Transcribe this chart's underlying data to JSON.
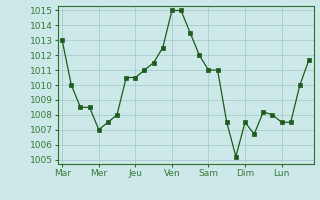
{
  "x_values": [
    0,
    1,
    2,
    3,
    4,
    5,
    6,
    7,
    8,
    9,
    10,
    11,
    12,
    13,
    14,
    15,
    16,
    17,
    18,
    19,
    20,
    21,
    22,
    23,
    24,
    25,
    26,
    27
  ],
  "y_values": [
    1013,
    1010,
    1008.5,
    1008.5,
    1007,
    1007.5,
    1008,
    1010.5,
    1010.5,
    1011,
    1011.5,
    1012.5,
    1015,
    1015,
    1013.5,
    1012,
    1011,
    1011,
    1007.5,
    1005.2,
    1007.5,
    1006.7,
    1008.2,
    1008,
    1007.5,
    1007.5,
    1010,
    1011.7
  ],
  "x_tick_positions": [
    0,
    4,
    8,
    12,
    16,
    20,
    24
  ],
  "x_tick_labels": [
    "Mar",
    "Mer",
    "Jeu",
    "Ven",
    "Sam",
    "Dim",
    "Lun"
  ],
  "y_min": 1005,
  "y_max": 1015,
  "y_ticks": [
    1005,
    1006,
    1007,
    1008,
    1009,
    1010,
    1011,
    1012,
    1013,
    1014,
    1015
  ],
  "line_color": "#1e5c1e",
  "marker_color": "#1e5c1e",
  "bg_color": "#cce8e8",
  "grid_color": "#9ec8c8",
  "axis_color": "#2d6e2d",
  "tick_color": "#3a7a3a"
}
